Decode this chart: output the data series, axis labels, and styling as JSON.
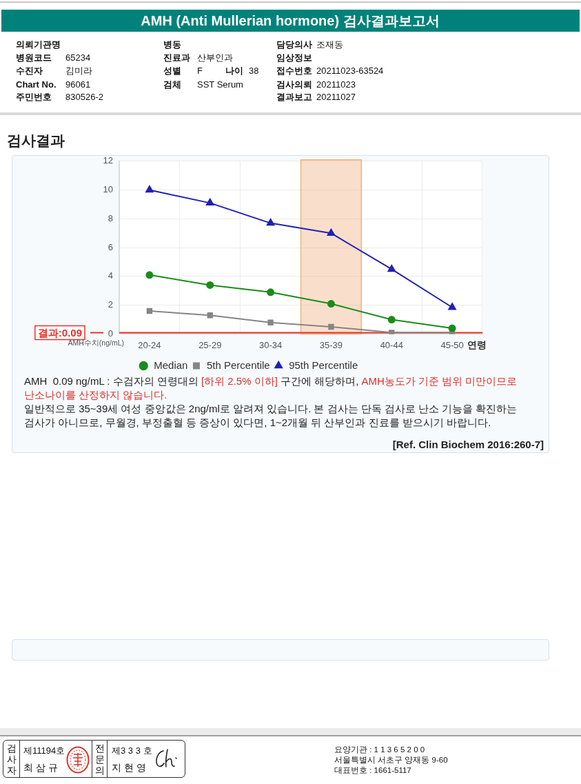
{
  "chart_data": {
    "type": "line",
    "title": "AMH (Anti Mullerian hormone) 검사결과보고서",
    "subtitle": "검사결과",
    "xlabel": "연령",
    "ylabel": "AMH수치(ng/mL)",
    "categories": [
      "20-24",
      "25-29",
      "30-34",
      "35-39",
      "40-44",
      "45-50"
    ],
    "series": [
      {
        "name": "Median",
        "color": "#1a8c1a",
        "marker": "circle",
        "values": [
          4.1,
          3.4,
          2.9,
          2.1,
          1.0,
          0.4
        ]
      },
      {
        "name": "5th Percentile",
        "color": "#858585",
        "marker": "square",
        "values": [
          1.6,
          1.3,
          0.8,
          0.5,
          0.1,
          0.1
        ]
      },
      {
        "name": "95th Percentile",
        "color": "#2020b8",
        "marker": "triangle",
        "values": [
          10.0,
          9.1,
          7.7,
          7.0,
          4.5,
          1.85
        ]
      }
    ],
    "ylim": [
      0,
      12
    ],
    "yticks": [
      0,
      2,
      4,
      6,
      8,
      10,
      12
    ],
    "grid": true,
    "legend": "bottom",
    "bands": [
      {
        "axis": "x",
        "from": "35-39",
        "to": "35-39",
        "color": "#f0b07e"
      }
    ],
    "ref_lines": [
      {
        "axis": "y",
        "value": 0.09,
        "label": "결과:0.09",
        "color": "#e8302a"
      }
    ],
    "annotations": [
      "의뢰기관명",
      "병원코드",
      "65234",
      "수진자",
      "김미라",
      "Chart No.",
      "96061",
      "주민번호",
      "830526-2",
      "병동",
      "진료과",
      "산부인과",
      "성별",
      "F",
      "나이",
      "38",
      "검체",
      "SST Serum",
      "담당의사",
      "조재동",
      "임상정보",
      "접수번호",
      "20211023-63524",
      "검사의뢰",
      "20211023",
      "결과보고",
      "20211027",
      "AMH  0.09 ng/mL : 수검자의 연령대의",
      "[하위 2.5% 이하]",
      "구간에 해당하며,",
      "AMH농도가 기준 범위 미만이므로",
      "난소나이를 산정하지 않습니다.",
      "일반적으로 35~39세 여성 중앙값은 2ng/ml로 알려져 있습니다. 본 검사는 단독 검사로 난소 기능을 확진하는 검사가 아니므로, 무월경, 부정출혈 등 증상이 있다면, 1~2개월 뒤 산부인과 진료를 받으시기 바랍니다.",
      "[Ref. Clin Biochem 2016:260-7]",
      "검사자",
      "제11194호",
      "최 삼 규",
      "전문의",
      "제3 3 3 호",
      "지 현 영",
      "요양기관 : 1 1 3 6 5 2 0 0",
      "서울특별시 서초구 양재동 9-60",
      "대표번호 : 1661-5117"
    ]
  }
}
